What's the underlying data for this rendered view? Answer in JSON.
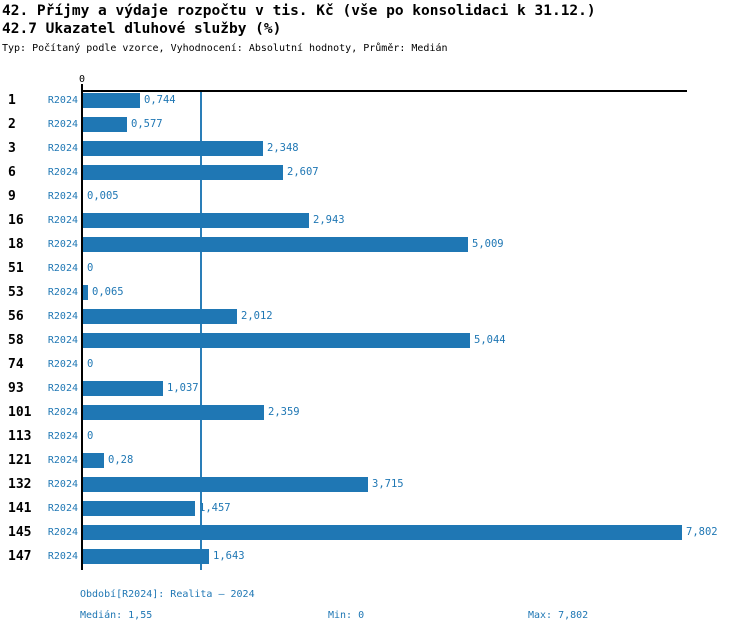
{
  "header": {
    "title_line1": "42. Příjmy a výdaje rozpočtu v tis. Kč (vše po konsolidaci k 31.12.)",
    "title_line2": "42.7 Ukazatel dluhové služby (%)",
    "meta": "Typ: Počítaný podle vzorce, Vyhodnocení: Absolutní hodnoty, Průměr: Medián"
  },
  "chart_data": {
    "type": "bar",
    "orientation": "horizontal",
    "title": "42. Příjmy a výdaje rozpočtu v tis. Kč (vše po konsolidaci k 31.12.)",
    "subtitle": "42.7 Ukazatel dluhové služby (%)",
    "xlabel": "",
    "ylabel": "",
    "grid": false,
    "xlim": [
      0,
      7.9
    ],
    "x_tick_zero": "0",
    "categories": [
      "1",
      "2",
      "3",
      "6",
      "9",
      "16",
      "18",
      "51",
      "53",
      "56",
      "58",
      "74",
      "93",
      "101",
      "113",
      "121",
      "132",
      "141",
      "145",
      "147"
    ],
    "series": [
      {
        "name": "R2024",
        "values": [
          0.744,
          0.577,
          2.348,
          2.607,
          0.005,
          2.943,
          5.009,
          0,
          0.065,
          2.012,
          5.044,
          0,
          1.037,
          2.359,
          0,
          0.28,
          3.715,
          1.457,
          7.802,
          1.643
        ]
      }
    ],
    "value_labels": [
      "0,744",
      "0,577",
      "2,348",
      "2,607",
      "0,005",
      "2,943",
      "5,009",
      "0",
      "0,065",
      "2,012",
      "5,044",
      "0",
      "1,037",
      "2,359",
      "0",
      "0,28",
      "3,715",
      "1,457",
      "7,802",
      "1,643"
    ],
    "median_line_value": 1.55,
    "bar_color": "#1f77b4",
    "label_color": "#1f77b4",
    "axis_color": "#000000"
  },
  "footer": {
    "period": "Období[R2024]: Realita – 2024",
    "median": "Medián: 1,55",
    "min": "Min: 0",
    "max": "Max: 7,802"
  }
}
